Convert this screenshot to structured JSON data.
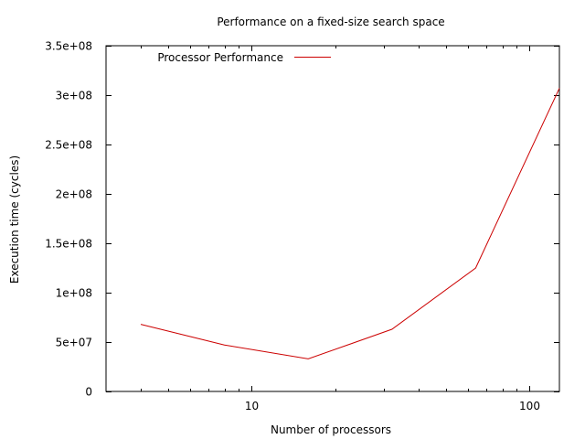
{
  "chart_data": {
    "type": "line",
    "title": "Performance on a fixed-size search space",
    "xlabel": "Number of processors",
    "ylabel": "Execution time (cycles)",
    "x_scale": "log",
    "xlim": [
      3,
      128
    ],
    "ylim": [
      0,
      350000000
    ],
    "x_ticks": [
      {
        "value": 10,
        "label": "10"
      },
      {
        "value": 100,
        "label": "100"
      }
    ],
    "y_ticks": [
      {
        "value": 0,
        "label": "0"
      },
      {
        "value": 50000000,
        "label": "5e+07"
      },
      {
        "value": 100000000,
        "label": "1e+08"
      },
      {
        "value": 150000000,
        "label": "1.5e+08"
      },
      {
        "value": 200000000,
        "label": "2e+08"
      },
      {
        "value": 250000000,
        "label": "2.5e+08"
      },
      {
        "value": 300000000,
        "label": "3e+08"
      },
      {
        "value": 350000000,
        "label": "3.5e+08"
      }
    ],
    "series": [
      {
        "name": "Processor Performance",
        "color": "#cc0000",
        "x": [
          4,
          8,
          16,
          32,
          64,
          128
        ],
        "y": [
          68000000,
          47000000,
          33000000,
          63000000,
          125000000,
          307000000
        ]
      }
    ],
    "legend_position": "top-left",
    "grid": false
  }
}
